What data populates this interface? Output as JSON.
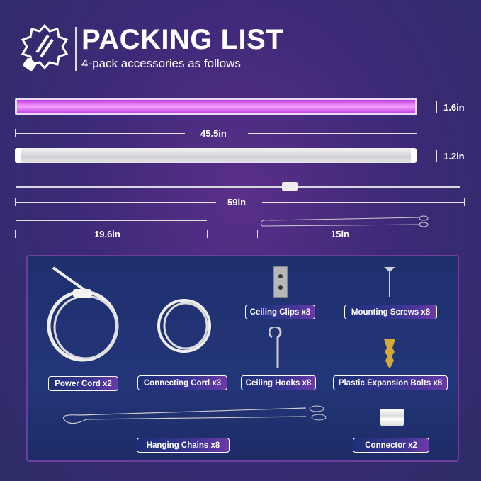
{
  "header": {
    "title": "PACKING LIST",
    "subtitle": "4-pack accessories as follows",
    "logo": "grow-bulb-logo-icon"
  },
  "dimensions": {
    "tube_height_purple": "1.6in",
    "tube_length": "45.5in",
    "tube_height_white": "1.2in",
    "power_cord_length": "59in",
    "connecting_cord_length": "19.6in",
    "chain_length": "15in"
  },
  "items": [
    {
      "label": "Ceiling Clips x8",
      "icon": "ceiling-clip-icon"
    },
    {
      "label": "Mounting Screws x8",
      "icon": "screw-icon"
    },
    {
      "label": "Power Cord x2",
      "icon": "power-cord-icon"
    },
    {
      "label": "Connecting Cord x3",
      "icon": "connecting-cord-icon"
    },
    {
      "label": "Ceiling Hooks x8",
      "icon": "hook-icon"
    },
    {
      "label": "Plastic Expansion Bolts x8",
      "icon": "expansion-bolt-icon"
    },
    {
      "label": "Hanging Chains x8",
      "icon": "hanging-chain-icon"
    },
    {
      "label": "Connector x2",
      "icon": "connector-icon"
    }
  ],
  "colors": {
    "accent_purple": "#d63cf0",
    "panel": "#22347a"
  }
}
